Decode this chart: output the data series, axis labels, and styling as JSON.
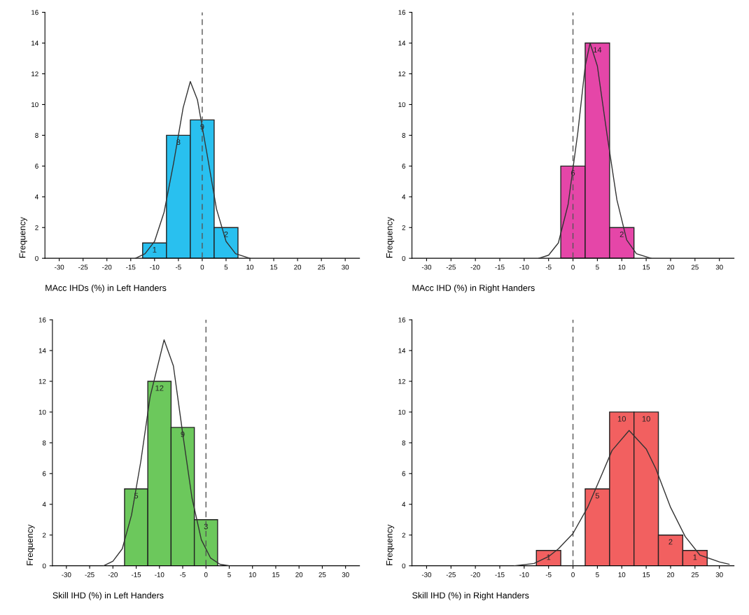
{
  "chart_data": [
    {
      "type": "histogram",
      "xlabel": "MAcc IHDs (%) in Left Handers",
      "ylabel": "Frequency",
      "bins": [
        -12.5,
        -7.5,
        -2.5,
        2.5,
        7.5
      ],
      "values": [
        1,
        8,
        9,
        2
      ],
      "value_labels": [
        "1",
        "8",
        "9",
        "2"
      ],
      "color": "#29c0ef",
      "xlim": [
        -33,
        33
      ],
      "ylim": [
        0,
        16
      ],
      "xticks": [
        -30,
        -25,
        -20,
        -15,
        -10,
        -5,
        0,
        5,
        10,
        15,
        20,
        25,
        30
      ],
      "yticks": [
        0,
        2,
        4,
        6,
        8,
        10,
        12,
        14,
        16
      ],
      "grid": false,
      "legend": false,
      "ref_lines": [
        {
          "axis": "x",
          "value": 0,
          "line_style": "dashed",
          "color": "#555555"
        }
      ],
      "series": [
        {
          "type": "line",
          "color": "#333333",
          "x": [
            -14,
            -12,
            -10,
            -8,
            -6,
            -4,
            -2.5,
            -1,
            1,
            3,
            5,
            7,
            10
          ],
          "values": [
            0,
            0.3,
            1.1,
            3,
            6.2,
            9.8,
            11.5,
            10.3,
            6.8,
            3.2,
            1.1,
            0.3,
            0
          ]
        }
      ]
    },
    {
      "type": "histogram",
      "xlabel": "MAcc IHD (%) in Right Handers",
      "ylabel": "Frequency",
      "bins": [
        -2.5,
        2.5,
        7.5,
        12.5
      ],
      "values": [
        6,
        14,
        2
      ],
      "value_labels": [
        "6",
        "14",
        "2"
      ],
      "color": "#e546a8",
      "xlim": [
        -33,
        33
      ],
      "ylim": [
        0,
        16
      ],
      "xticks": [
        -30,
        -25,
        -20,
        -15,
        -10,
        -5,
        0,
        5,
        10,
        15,
        20,
        25,
        30
      ],
      "yticks": [
        0,
        2,
        4,
        6,
        8,
        10,
        12,
        14,
        16
      ],
      "grid": false,
      "legend": false,
      "ref_lines": [
        {
          "axis": "x",
          "value": 0,
          "line_style": "dashed",
          "color": "#555555"
        }
      ],
      "series": [
        {
          "type": "line",
          "color": "#333333",
          "x": [
            -7,
            -5,
            -3,
            -1,
            1,
            2.5,
            3.5,
            5,
            7,
            9,
            11,
            13,
            16
          ],
          "values": [
            0,
            0.2,
            1,
            3.5,
            8.2,
            12.5,
            14,
            12.5,
            8,
            3.8,
            1.2,
            0.3,
            0
          ]
        }
      ]
    },
    {
      "type": "histogram",
      "xlabel": "Skill IHD (%) in Left Handers",
      "ylabel": "Frequency",
      "bins": [
        -17.5,
        -12.5,
        -7.5,
        -2.5,
        2.5
      ],
      "values": [
        5,
        12,
        9,
        3
      ],
      "value_labels": [
        "5",
        "12",
        "9",
        "3"
      ],
      "color": "#6cc85c",
      "xlim": [
        -33,
        33
      ],
      "ylim": [
        0,
        16
      ],
      "xticks": [
        -30,
        -25,
        -20,
        -15,
        -10,
        -5,
        0,
        5,
        10,
        15,
        20,
        25,
        30
      ],
      "yticks": [
        0,
        2,
        4,
        6,
        8,
        10,
        12,
        14,
        16
      ],
      "grid": false,
      "legend": false,
      "ref_lines": [
        {
          "axis": "x",
          "value": 0,
          "line_style": "dashed",
          "color": "#555555"
        }
      ],
      "series": [
        {
          "type": "line",
          "color": "#333333",
          "x": [
            -22,
            -20,
            -18,
            -16,
            -14,
            -12,
            -9,
            -7,
            -5,
            -3,
            -1,
            1,
            3,
            5
          ],
          "values": [
            0,
            0.3,
            1.1,
            3.3,
            6.8,
            11,
            14.7,
            13,
            8.6,
            4.4,
            1.7,
            0.5,
            0.1,
            0
          ]
        }
      ]
    },
    {
      "type": "histogram",
      "xlabel": "Skill IHD (%) in Right Handers",
      "ylabel": "Frequency",
      "bins": [
        -7.5,
        -2.5,
        2.5,
        7.5,
        12.5,
        17.5,
        22.5,
        27.5
      ],
      "values": [
        1,
        0,
        5,
        10,
        10,
        2,
        1
      ],
      "value_labels": [
        "1",
        null,
        "5",
        "10",
        "10",
        "2",
        "1"
      ],
      "color": "#f26060",
      "xlim": [
        -33,
        33
      ],
      "ylim": [
        0,
        16
      ],
      "xticks": [
        -30,
        -25,
        -20,
        -15,
        -10,
        -5,
        0,
        5,
        10,
        15,
        20,
        25,
        30
      ],
      "yticks": [
        0,
        2,
        4,
        6,
        8,
        10,
        12,
        14,
        16
      ],
      "grid": false,
      "legend": false,
      "ref_lines": [
        {
          "axis": "x",
          "value": 0,
          "line_style": "dashed",
          "color": "#555555"
        }
      ],
      "series": [
        {
          "type": "line",
          "color": "#333333",
          "x": [
            -12,
            -8,
            -5,
            -3,
            0,
            3,
            6,
            8,
            11.5,
            15,
            17,
            20,
            23,
            26,
            30,
            32
          ],
          "values": [
            0,
            0.15,
            0.6,
            1.1,
            2.1,
            3.8,
            6,
            7.5,
            8.8,
            7.6,
            6.3,
            3.8,
            1.9,
            0.7,
            0.25,
            0.1
          ]
        }
      ]
    }
  ]
}
